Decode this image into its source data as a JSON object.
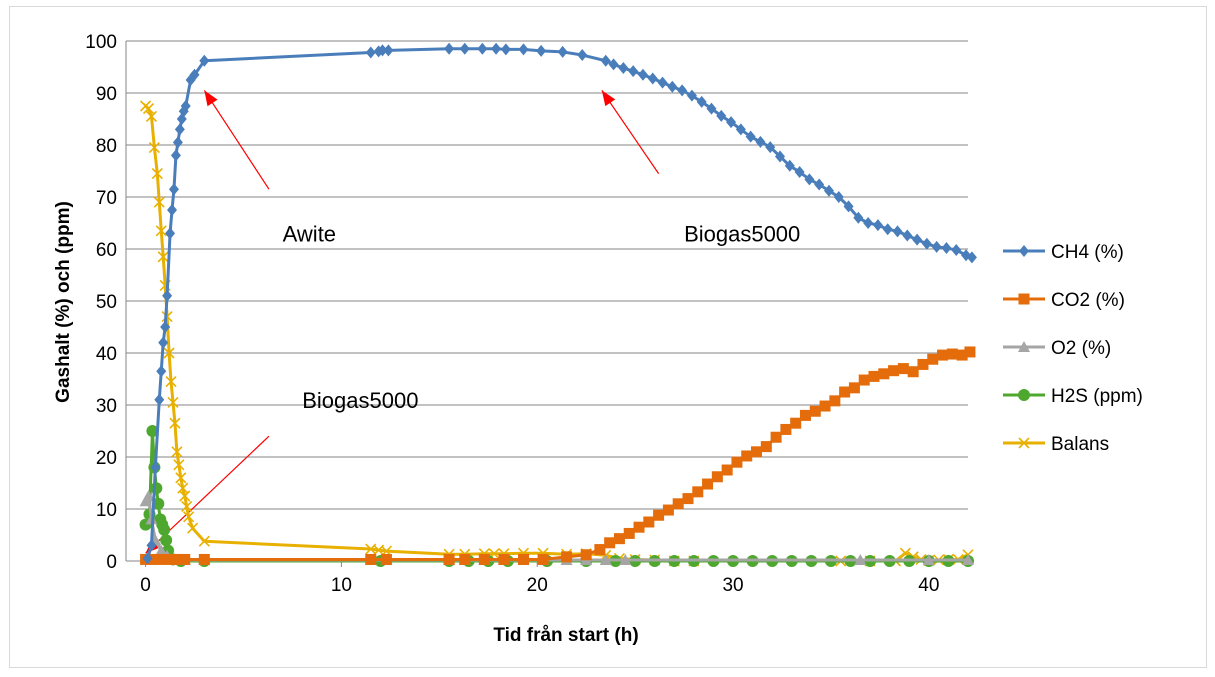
{
  "chart_data": {
    "type": "line",
    "title": "",
    "xlabel": "Tid från start (h)",
    "ylabel": "Gashalt (%) och (ppm)",
    "xlim": [
      -1,
      42
    ],
    "ylim": [
      0,
      100
    ],
    "xticks": [
      0,
      10,
      20,
      30,
      40
    ],
    "yticks": [
      0,
      10,
      20,
      30,
      40,
      50,
      60,
      70,
      80,
      90,
      100
    ],
    "grid": "horizontal",
    "legend_position": "right",
    "annotations": [
      {
        "text": "Awite",
        "x": 7,
        "y": 63
      },
      {
        "text": "Biogas5000",
        "x": 27.5,
        "y": 63
      },
      {
        "text": "Biogas5000",
        "x": 8,
        "y": 31
      }
    ],
    "arrows": [
      {
        "from": [
          6.3,
          71.5
        ],
        "to": [
          3.0,
          90.5
        ]
      },
      {
        "from": [
          26.2,
          74.5
        ],
        "to": [
          23.3,
          90.5
        ]
      },
      {
        "from": [
          6.3,
          24
        ],
        "to": [
          0.0,
          1.5
        ]
      }
    ],
    "series": [
      {
        "name": "CH4 (%)",
        "color": "#4a7ebb",
        "marker": "diamond",
        "points": [
          [
            0.1,
            0.5
          ],
          [
            0.3,
            3
          ],
          [
            0.5,
            18
          ],
          [
            0.7,
            31
          ],
          [
            0.8,
            36.5
          ],
          [
            0.9,
            42
          ],
          [
            1.0,
            45
          ],
          [
            1.1,
            51
          ],
          [
            1.25,
            63
          ],
          [
            1.35,
            67.5
          ],
          [
            1.45,
            71.5
          ],
          [
            1.55,
            78
          ],
          [
            1.65,
            80.5
          ],
          [
            1.75,
            83
          ],
          [
            1.85,
            85
          ],
          [
            1.95,
            86.5
          ],
          [
            2.05,
            87.5
          ],
          [
            2.3,
            92.5
          ],
          [
            2.5,
            93.5
          ],
          [
            3.0,
            96.2
          ],
          [
            11.5,
            97.8
          ],
          [
            11.9,
            98
          ],
          [
            12.1,
            98.2
          ],
          [
            12.4,
            98.2
          ],
          [
            15.5,
            98.5
          ],
          [
            16.3,
            98.5
          ],
          [
            17.2,
            98.5
          ],
          [
            17.9,
            98.5
          ],
          [
            18.4,
            98.4
          ],
          [
            19.3,
            98.4
          ],
          [
            20.2,
            98.1
          ],
          [
            21.3,
            97.9
          ],
          [
            22.3,
            97.3
          ],
          [
            23.5,
            96.2
          ],
          [
            23.9,
            95.5
          ],
          [
            24.4,
            94.8
          ],
          [
            24.9,
            94.2
          ],
          [
            25.4,
            93.5
          ],
          [
            25.9,
            92.8
          ],
          [
            26.4,
            92
          ],
          [
            26.9,
            91.2
          ],
          [
            27.4,
            90.5
          ],
          [
            27.9,
            89.5
          ],
          [
            28.4,
            88.3
          ],
          [
            28.9,
            87
          ],
          [
            29.4,
            85.6
          ],
          [
            29.9,
            84.4
          ],
          [
            30.4,
            83
          ],
          [
            30.9,
            81.6
          ],
          [
            31.4,
            80.6
          ],
          [
            31.9,
            79.6
          ],
          [
            32.4,
            77.8
          ],
          [
            32.9,
            76
          ],
          [
            33.4,
            74.8
          ],
          [
            33.9,
            73.4
          ],
          [
            34.4,
            72.4
          ],
          [
            34.9,
            71.2
          ],
          [
            35.4,
            70
          ],
          [
            35.9,
            68.2
          ],
          [
            36.4,
            66
          ],
          [
            36.9,
            65
          ],
          [
            37.4,
            64.6
          ],
          [
            37.9,
            63.8
          ],
          [
            38.4,
            63.4
          ],
          [
            38.9,
            62.6
          ],
          [
            39.4,
            61.8
          ],
          [
            39.9,
            61
          ],
          [
            40.4,
            60.4
          ],
          [
            40.9,
            60.2
          ],
          [
            41.4,
            59.8
          ],
          [
            41.9,
            58.8
          ],
          [
            42.2,
            58.4
          ]
        ]
      },
      {
        "name": "CO2 (%)",
        "color": "#e46c0a",
        "marker": "square",
        "points": [
          [
            0.0,
            0.3
          ],
          [
            0.5,
            0.3
          ],
          [
            1.0,
            0.3
          ],
          [
            1.5,
            0.3
          ],
          [
            2.0,
            0.3
          ],
          [
            3.0,
            0.3
          ],
          [
            11.5,
            0.3
          ],
          [
            12.3,
            0.3
          ],
          [
            15.5,
            0.3
          ],
          [
            16.3,
            0.3
          ],
          [
            17.3,
            0.3
          ],
          [
            18.3,
            0.3
          ],
          [
            19.3,
            0.3
          ],
          [
            20.3,
            0.3
          ],
          [
            21.5,
            0.8
          ],
          [
            22.5,
            1.2
          ],
          [
            23.2,
            2.2
          ],
          [
            23.7,
            3.5
          ],
          [
            24.2,
            4.3
          ],
          [
            24.7,
            5.3
          ],
          [
            25.2,
            6.5
          ],
          [
            25.7,
            7.5
          ],
          [
            26.2,
            8.8
          ],
          [
            26.7,
            9.8
          ],
          [
            27.2,
            11
          ],
          [
            27.7,
            12
          ],
          [
            28.2,
            13.3
          ],
          [
            28.7,
            14.8
          ],
          [
            29.2,
            16.2
          ],
          [
            29.7,
            17.5
          ],
          [
            30.2,
            19
          ],
          [
            30.7,
            20.2
          ],
          [
            31.2,
            21
          ],
          [
            31.7,
            22
          ],
          [
            32.2,
            23.8
          ],
          [
            32.7,
            25.3
          ],
          [
            33.2,
            26.5
          ],
          [
            33.7,
            28
          ],
          [
            34.2,
            28.8
          ],
          [
            34.7,
            29.8
          ],
          [
            35.2,
            30.8
          ],
          [
            35.7,
            32.5
          ],
          [
            36.2,
            33.3
          ],
          [
            36.7,
            34.8
          ],
          [
            37.2,
            35.5
          ],
          [
            37.7,
            36
          ],
          [
            38.2,
            36.6
          ],
          [
            38.7,
            37
          ],
          [
            39.2,
            36.4
          ],
          [
            39.7,
            37.8
          ],
          [
            40.2,
            38.8
          ],
          [
            40.7,
            39.6
          ],
          [
            41.2,
            39.8
          ],
          [
            41.7,
            39.6
          ],
          [
            42.1,
            40.2
          ]
        ]
      },
      {
        "name": "O2 (%)",
        "color": "#a5a5a5",
        "marker": "triangle",
        "points": [
          [
            0.0,
            11.5
          ],
          [
            0.15,
            12.5
          ],
          [
            0.3,
            8
          ],
          [
            0.5,
            4
          ],
          [
            0.8,
            2
          ],
          [
            1.1,
            1
          ],
          [
            1.5,
            0.3
          ],
          [
            2.0,
            0.2
          ],
          [
            3.0,
            0.2
          ],
          [
            11.5,
            0.2
          ],
          [
            12.3,
            0.2
          ],
          [
            15.5,
            0.2
          ],
          [
            16.3,
            0.2
          ],
          [
            17.3,
            0.2
          ],
          [
            18.3,
            0.2
          ],
          [
            19.3,
            0.2
          ],
          [
            20.3,
            0.2
          ],
          [
            21.5,
            0.2
          ],
          [
            22.5,
            0.2
          ],
          [
            23.5,
            0.2
          ],
          [
            24.5,
            0.2
          ],
          [
            36.5,
            0.2
          ],
          [
            40,
            0.2
          ],
          [
            42,
            0.2
          ]
        ]
      },
      {
        "name": "H2S (ppm)",
        "color": "#4ea72e",
        "marker": "circle",
        "points": [
          [
            0.0,
            7
          ],
          [
            0.2,
            9
          ],
          [
            0.35,
            25
          ],
          [
            0.45,
            18
          ],
          [
            0.55,
            14
          ],
          [
            0.65,
            11
          ],
          [
            0.75,
            8
          ],
          [
            0.85,
            7
          ],
          [
            0.95,
            6
          ],
          [
            1.05,
            4
          ],
          [
            1.15,
            2
          ],
          [
            1.4,
            0.3
          ],
          [
            1.8,
            0
          ],
          [
            3,
            0
          ],
          [
            12,
            0
          ],
          [
            15.5,
            0
          ],
          [
            16.5,
            0
          ],
          [
            17.5,
            0
          ],
          [
            18.5,
            0
          ],
          [
            20.5,
            0
          ],
          [
            22.5,
            0
          ],
          [
            24,
            0
          ],
          [
            25,
            0
          ],
          [
            26,
            0
          ],
          [
            27,
            0
          ],
          [
            28,
            0
          ],
          [
            29,
            0
          ],
          [
            30,
            0
          ],
          [
            31,
            0
          ],
          [
            32,
            0
          ],
          [
            33,
            0
          ],
          [
            34,
            0
          ],
          [
            35,
            0
          ],
          [
            36,
            0
          ],
          [
            37,
            0
          ],
          [
            38,
            0
          ],
          [
            39,
            0
          ],
          [
            40,
            0
          ],
          [
            41,
            0
          ],
          [
            42,
            0
          ]
        ]
      },
      {
        "name": "Balans",
        "color": "#e8b000",
        "marker": "x",
        "points": [
          [
            0.0,
            87.5
          ],
          [
            0.15,
            87
          ],
          [
            0.3,
            85.5
          ],
          [
            0.45,
            79.5
          ],
          [
            0.6,
            74.5
          ],
          [
            0.7,
            69
          ],
          [
            0.8,
            63.5
          ],
          [
            0.9,
            58.5
          ],
          [
            1.0,
            53
          ],
          [
            1.1,
            47
          ],
          [
            1.2,
            40
          ],
          [
            1.3,
            34.5
          ],
          [
            1.4,
            30.5
          ],
          [
            1.5,
            26.5
          ],
          [
            1.6,
            21
          ],
          [
            1.7,
            18.5
          ],
          [
            1.8,
            16
          ],
          [
            1.9,
            14
          ],
          [
            2.0,
            12.5
          ],
          [
            2.1,
            10.5
          ],
          [
            2.2,
            8.5
          ],
          [
            2.4,
            6.3
          ],
          [
            3.0,
            3.8
          ],
          [
            11.5,
            2.3
          ],
          [
            11.9,
            2.1
          ],
          [
            12.3,
            1.9
          ],
          [
            15.5,
            1.3
          ],
          [
            16.3,
            1.3
          ],
          [
            17.3,
            1.4
          ],
          [
            17.8,
            1.4
          ],
          [
            18.3,
            1.4
          ],
          [
            19.3,
            1.5
          ],
          [
            20.3,
            1.5
          ],
          [
            21.5,
            1.3
          ],
          [
            22.5,
            1.4
          ],
          [
            23.5,
            1.1
          ],
          [
            24.2,
            0.5
          ],
          [
            25,
            0.3
          ],
          [
            26,
            0.2
          ],
          [
            27,
            0
          ],
          [
            28,
            0
          ],
          [
            35.5,
            0
          ],
          [
            37,
            0
          ],
          [
            38.3,
            0
          ],
          [
            38.8,
            1.5
          ],
          [
            39.2,
            0.8
          ],
          [
            39.6,
            0.3
          ],
          [
            40,
            0.1
          ],
          [
            40.5,
            0.2
          ],
          [
            41,
            0.3
          ],
          [
            41.5,
            0.3
          ],
          [
            42,
            1.2
          ]
        ]
      }
    ]
  }
}
